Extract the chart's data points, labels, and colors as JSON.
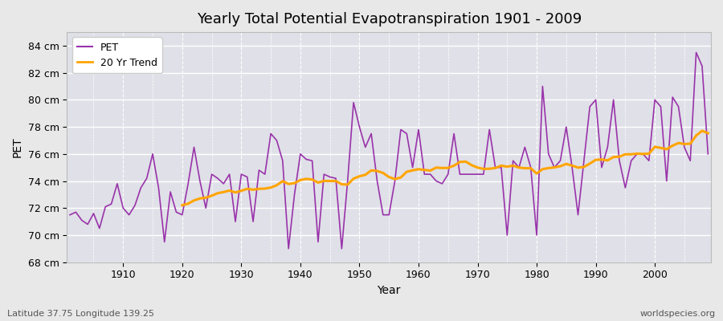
{
  "title": "Yearly Total Potential Evapotranspiration 1901 - 2009",
  "ylabel": "PET",
  "xlabel": "Year",
  "subtitle": "Latitude 37.75 Longitude 139.25",
  "watermark": "worldspecies.org",
  "pet_color": "#9933aa",
  "trend_color": "#FFA500",
  "background_color": "#e8e8e8",
  "plot_bg_color": "#e0e0e8",
  "grid_color": "#ffffff",
  "ylim": [
    68,
    85
  ],
  "yticks": [
    68,
    70,
    72,
    74,
    76,
    78,
    80,
    82,
    84
  ],
  "years": [
    1901,
    1902,
    1903,
    1904,
    1905,
    1906,
    1907,
    1908,
    1909,
    1910,
    1911,
    1912,
    1913,
    1914,
    1915,
    1916,
    1917,
    1918,
    1919,
    1920,
    1921,
    1922,
    1923,
    1924,
    1925,
    1926,
    1927,
    1928,
    1929,
    1930,
    1931,
    1932,
    1933,
    1934,
    1935,
    1936,
    1937,
    1938,
    1939,
    1940,
    1941,
    1942,
    1943,
    1944,
    1945,
    1946,
    1947,
    1948,
    1949,
    1950,
    1951,
    1952,
    1953,
    1954,
    1955,
    1956,
    1957,
    1958,
    1959,
    1960,
    1961,
    1962,
    1963,
    1964,
    1965,
    1966,
    1967,
    1968,
    1969,
    1970,
    1971,
    1972,
    1973,
    1974,
    1975,
    1976,
    1977,
    1978,
    1979,
    1980,
    1981,
    1982,
    1983,
    1984,
    1985,
    1986,
    1987,
    1988,
    1989,
    1990,
    1991,
    1992,
    1993,
    1994,
    1995,
    1996,
    1997,
    1998,
    1999,
    2000,
    2001,
    2002,
    2003,
    2004,
    2005,
    2006,
    2007,
    2008,
    2009
  ],
  "pet_values": [
    71.5,
    71.7,
    71.1,
    70.8,
    71.6,
    70.5,
    72.1,
    72.3,
    73.8,
    72.0,
    71.5,
    72.2,
    73.5,
    74.2,
    76.0,
    73.5,
    69.5,
    73.2,
    71.7,
    71.5,
    73.8,
    76.5,
    74.0,
    72.0,
    74.5,
    74.2,
    73.8,
    74.5,
    71.0,
    74.5,
    74.3,
    71.0,
    74.8,
    74.5,
    77.5,
    77.0,
    75.5,
    69.0,
    73.0,
    76.0,
    75.6,
    75.5,
    69.5,
    74.5,
    74.3,
    74.2,
    69.0,
    74.0,
    79.8,
    78.0,
    76.5,
    77.5,
    74.0,
    71.5,
    71.5,
    74.0,
    77.8,
    77.5,
    75.0,
    77.8,
    74.5,
    74.5,
    74.0,
    73.8,
    74.5,
    77.5,
    74.5,
    74.5,
    74.5,
    74.5,
    74.5,
    77.8,
    75.0,
    75.0,
    70.0,
    75.5,
    75.0,
    76.5,
    75.0,
    70.0,
    81.0,
    76.0,
    75.0,
    75.5,
    78.0,
    75.0,
    71.5,
    75.5,
    79.5,
    80.0,
    75.0,
    76.5,
    80.0,
    75.5,
    73.5,
    75.5,
    76.0,
    76.0,
    75.5,
    80.0,
    79.5,
    74.0,
    80.2,
    79.5,
    76.5,
    75.5,
    83.5,
    82.5,
    76.0
  ],
  "trend_window": 20,
  "legend_loc": "upper left"
}
